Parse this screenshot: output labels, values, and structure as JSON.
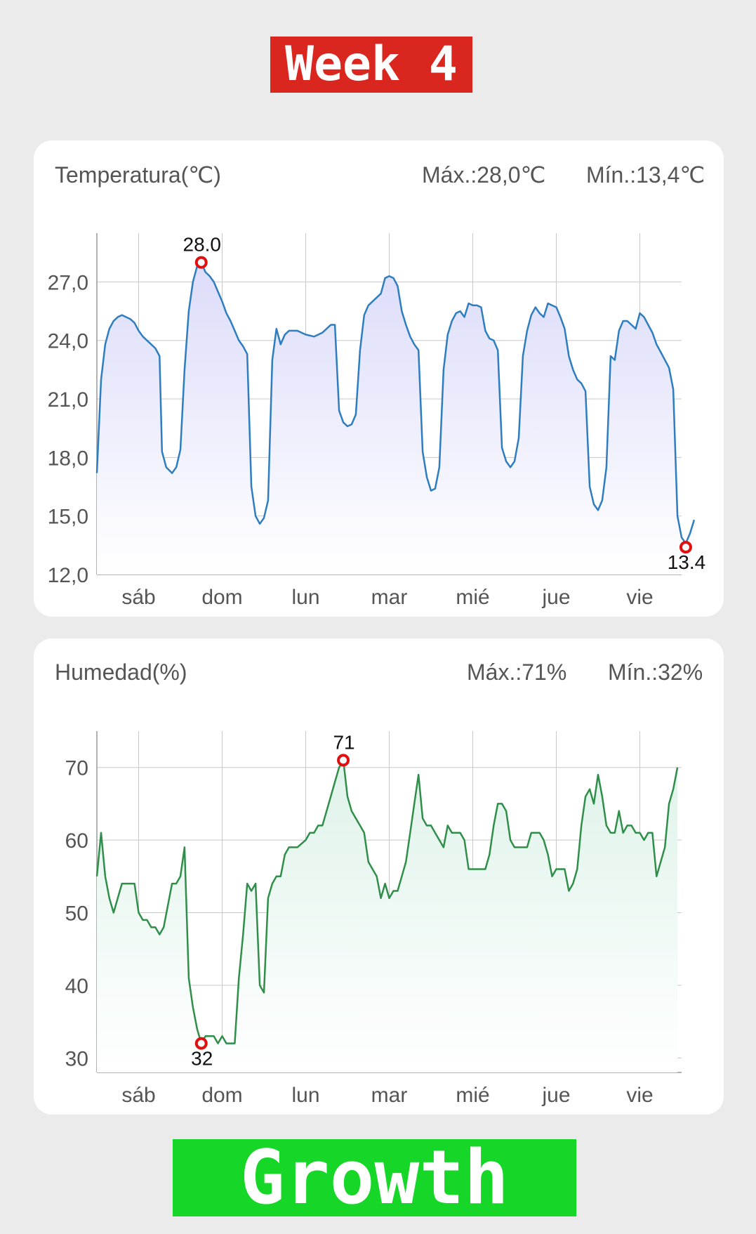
{
  "banner_top": "Week 4",
  "banner_bottom": "Growth",
  "colors": {
    "background": "#ebebeb",
    "banner_top": "#d9261f",
    "banner_bottom": "#16d628",
    "temperature_line": "#2e7dc0",
    "humidity_line": "#2f8f4a",
    "marker": "#e01010"
  },
  "temperature": {
    "title": "Temperatura(℃)",
    "max_label": "Máx.:28,0℃",
    "min_label": "Mín.:13,4℃"
  },
  "humidity": {
    "title": "Humedad(%)",
    "max_label": "Máx.:71%",
    "min_label": "Mín.:32%"
  },
  "chart_data": [
    {
      "type": "area",
      "days": [
        "sáb",
        "dom",
        "lun",
        "mar",
        "mié",
        "jue",
        "vie"
      ],
      "x_range": [
        -0.5,
        6.5
      ],
      "ylim": [
        12.0,
        29.5
      ],
      "yticks": [
        12.0,
        15.0,
        18.0,
        21.0,
        24.0,
        27.0
      ],
      "ytick_labels": [
        "12,0",
        "15,0",
        "18,0",
        "21,0",
        "24,0",
        "27,0"
      ],
      "grid": true,
      "points": [
        [
          -0.5,
          17.2
        ],
        [
          -0.45,
          22.0
        ],
        [
          -0.4,
          23.8
        ],
        [
          -0.35,
          24.6
        ],
        [
          -0.3,
          25.0
        ],
        [
          -0.25,
          25.2
        ],
        [
          -0.2,
          25.3
        ],
        [
          -0.1,
          25.1
        ],
        [
          -0.05,
          24.9
        ],
        [
          0.0,
          24.5
        ],
        [
          0.05,
          24.2
        ],
        [
          0.1,
          24.0
        ],
        [
          0.15,
          23.8
        ],
        [
          0.2,
          23.6
        ],
        [
          0.25,
          23.2
        ],
        [
          0.28,
          18.3
        ],
        [
          0.33,
          17.5
        ],
        [
          0.4,
          17.2
        ],
        [
          0.45,
          17.5
        ],
        [
          0.5,
          18.4
        ],
        [
          0.55,
          22.5
        ],
        [
          0.6,
          25.5
        ],
        [
          0.65,
          27.0
        ],
        [
          0.7,
          27.8
        ],
        [
          0.75,
          28.0
        ],
        [
          0.8,
          27.5
        ],
        [
          0.85,
          27.3
        ],
        [
          0.9,
          27.0
        ],
        [
          0.95,
          26.5
        ],
        [
          1.0,
          26.0
        ],
        [
          1.05,
          25.4
        ],
        [
          1.1,
          25.0
        ],
        [
          1.15,
          24.5
        ],
        [
          1.2,
          24.0
        ],
        [
          1.25,
          23.7
        ],
        [
          1.3,
          23.3
        ],
        [
          1.35,
          16.5
        ],
        [
          1.4,
          15.0
        ],
        [
          1.45,
          14.6
        ],
        [
          1.5,
          14.9
        ],
        [
          1.55,
          15.8
        ],
        [
          1.6,
          23.0
        ],
        [
          1.65,
          24.6
        ],
        [
          1.7,
          23.8
        ],
        [
          1.75,
          24.3
        ],
        [
          1.8,
          24.5
        ],
        [
          1.9,
          24.5
        ],
        [
          2.0,
          24.3
        ],
        [
          2.1,
          24.2
        ],
        [
          2.2,
          24.4
        ],
        [
          2.25,
          24.6
        ],
        [
          2.3,
          24.8
        ],
        [
          2.35,
          24.8
        ],
        [
          2.4,
          20.4
        ],
        [
          2.45,
          19.8
        ],
        [
          2.5,
          19.6
        ],
        [
          2.55,
          19.7
        ],
        [
          2.6,
          20.2
        ],
        [
          2.65,
          23.5
        ],
        [
          2.7,
          25.3
        ],
        [
          2.75,
          25.8
        ],
        [
          2.8,
          26.0
        ],
        [
          2.85,
          26.2
        ],
        [
          2.9,
          26.4
        ],
        [
          2.95,
          27.2
        ],
        [
          3.0,
          27.3
        ],
        [
          3.05,
          27.2
        ],
        [
          3.1,
          26.8
        ],
        [
          3.15,
          25.5
        ],
        [
          3.2,
          24.8
        ],
        [
          3.25,
          24.2
        ],
        [
          3.3,
          23.8
        ],
        [
          3.35,
          23.5
        ],
        [
          3.4,
          18.3
        ],
        [
          3.45,
          17.0
        ],
        [
          3.5,
          16.3
        ],
        [
          3.55,
          16.4
        ],
        [
          3.6,
          17.5
        ],
        [
          3.65,
          22.5
        ],
        [
          3.7,
          24.3
        ],
        [
          3.75,
          25.0
        ],
        [
          3.8,
          25.4
        ],
        [
          3.85,
          25.5
        ],
        [
          3.9,
          25.2
        ],
        [
          3.95,
          25.9
        ],
        [
          4.0,
          25.8
        ],
        [
          4.05,
          25.8
        ],
        [
          4.1,
          25.7
        ],
        [
          4.15,
          24.5
        ],
        [
          4.2,
          24.1
        ],
        [
          4.25,
          24.0
        ],
        [
          4.3,
          23.5
        ],
        [
          4.35,
          18.5
        ],
        [
          4.4,
          17.8
        ],
        [
          4.45,
          17.5
        ],
        [
          4.5,
          17.8
        ],
        [
          4.55,
          19.0
        ],
        [
          4.6,
          23.2
        ],
        [
          4.65,
          24.5
        ],
        [
          4.7,
          25.3
        ],
        [
          4.75,
          25.7
        ],
        [
          4.8,
          25.4
        ],
        [
          4.85,
          25.2
        ],
        [
          4.9,
          25.9
        ],
        [
          4.95,
          25.8
        ],
        [
          5.0,
          25.7
        ],
        [
          5.05,
          25.2
        ],
        [
          5.1,
          24.6
        ],
        [
          5.15,
          23.2
        ],
        [
          5.2,
          22.5
        ],
        [
          5.25,
          22.0
        ],
        [
          5.3,
          21.8
        ],
        [
          5.35,
          21.4
        ],
        [
          5.4,
          16.5
        ],
        [
          5.45,
          15.6
        ],
        [
          5.5,
          15.3
        ],
        [
          5.55,
          15.8
        ],
        [
          5.6,
          17.5
        ],
        [
          5.65,
          23.2
        ],
        [
          5.7,
          23.0
        ],
        [
          5.75,
          24.5
        ],
        [
          5.8,
          25.0
        ],
        [
          5.85,
          25.0
        ],
        [
          5.9,
          24.8
        ],
        [
          5.95,
          24.6
        ],
        [
          6.0,
          25.4
        ],
        [
          6.05,
          25.2
        ],
        [
          6.1,
          24.8
        ],
        [
          6.15,
          24.4
        ],
        [
          6.2,
          23.8
        ],
        [
          6.25,
          23.4
        ],
        [
          6.3,
          23.0
        ],
        [
          6.35,
          22.6
        ],
        [
          6.4,
          21.5
        ],
        [
          6.45,
          15.0
        ],
        [
          6.5,
          13.9
        ],
        [
          6.55,
          13.6
        ],
        [
          6.6,
          14.1
        ],
        [
          6.65,
          14.8
        ]
      ],
      "max": {
        "x": 0.75,
        "y": 28.0,
        "label": "28.0"
      },
      "min": {
        "x": 6.55,
        "y": 13.4,
        "label": "13.4"
      }
    },
    {
      "type": "area",
      "days": [
        "sáb",
        "dom",
        "lun",
        "mar",
        "mié",
        "jue",
        "vie"
      ],
      "x_range": [
        -0.5,
        6.5
      ],
      "ylim": [
        28,
        75
      ],
      "yticks": [
        30,
        40,
        50,
        60,
        70
      ],
      "ytick_labels": [
        "30",
        "40",
        "50",
        "60",
        "70"
      ],
      "grid": true,
      "points": [
        [
          -0.5,
          55
        ],
        [
          -0.45,
          61
        ],
        [
          -0.4,
          55
        ],
        [
          -0.35,
          52
        ],
        [
          -0.3,
          50
        ],
        [
          -0.2,
          54
        ],
        [
          -0.1,
          54
        ],
        [
          -0.05,
          54
        ],
        [
          0.0,
          50
        ],
        [
          0.05,
          49
        ],
        [
          0.1,
          49
        ],
        [
          0.15,
          48
        ],
        [
          0.2,
          48
        ],
        [
          0.25,
          47
        ],
        [
          0.3,
          48
        ],
        [
          0.4,
          54
        ],
        [
          0.45,
          54
        ],
        [
          0.5,
          55
        ],
        [
          0.55,
          59
        ],
        [
          0.6,
          41
        ],
        [
          0.65,
          37
        ],
        [
          0.7,
          34
        ],
        [
          0.75,
          32
        ],
        [
          0.8,
          33
        ],
        [
          0.9,
          33
        ],
        [
          0.95,
          32
        ],
        [
          1.0,
          33
        ],
        [
          1.05,
          32
        ],
        [
          1.1,
          32
        ],
        [
          1.15,
          32
        ],
        [
          1.2,
          41
        ],
        [
          1.25,
          47
        ],
        [
          1.3,
          54
        ],
        [
          1.35,
          53
        ],
        [
          1.4,
          54
        ],
        [
          1.45,
          40
        ],
        [
          1.5,
          39
        ],
        [
          1.55,
          52
        ],
        [
          1.6,
          54
        ],
        [
          1.65,
          55
        ],
        [
          1.7,
          55
        ],
        [
          1.75,
          58
        ],
        [
          1.8,
          59
        ],
        [
          1.9,
          59
        ],
        [
          2.0,
          60
        ],
        [
          2.05,
          61
        ],
        [
          2.1,
          61
        ],
        [
          2.15,
          62
        ],
        [
          2.2,
          62
        ],
        [
          2.25,
          64
        ],
        [
          2.3,
          66
        ],
        [
          2.35,
          68
        ],
        [
          2.4,
          70
        ],
        [
          2.45,
          71
        ],
        [
          2.5,
          66
        ],
        [
          2.55,
          64
        ],
        [
          2.6,
          63
        ],
        [
          2.65,
          62
        ],
        [
          2.7,
          61
        ],
        [
          2.75,
          57
        ],
        [
          2.8,
          56
        ],
        [
          2.85,
          55
        ],
        [
          2.9,
          52
        ],
        [
          2.95,
          54
        ],
        [
          3.0,
          52
        ],
        [
          3.05,
          53
        ],
        [
          3.1,
          53
        ],
        [
          3.15,
          55
        ],
        [
          3.2,
          57
        ],
        [
          3.25,
          61
        ],
        [
          3.3,
          65
        ],
        [
          3.35,
          69
        ],
        [
          3.4,
          63
        ],
        [
          3.45,
          62
        ],
        [
          3.5,
          62
        ],
        [
          3.55,
          61
        ],
        [
          3.6,
          60
        ],
        [
          3.65,
          59
        ],
        [
          3.7,
          62
        ],
        [
          3.75,
          61
        ],
        [
          3.85,
          61
        ],
        [
          3.9,
          60
        ],
        [
          3.95,
          56
        ],
        [
          4.05,
          56
        ],
        [
          4.15,
          56
        ],
        [
          4.2,
          58
        ],
        [
          4.25,
          62
        ],
        [
          4.3,
          65
        ],
        [
          4.35,
          65
        ],
        [
          4.4,
          64
        ],
        [
          4.45,
          60
        ],
        [
          4.5,
          59
        ],
        [
          4.6,
          59
        ],
        [
          4.65,
          59
        ],
        [
          4.7,
          61
        ],
        [
          4.8,
          61
        ],
        [
          4.85,
          60
        ],
        [
          4.9,
          58
        ],
        [
          4.95,
          55
        ],
        [
          5.0,
          56
        ],
        [
          5.1,
          56
        ],
        [
          5.15,
          53
        ],
        [
          5.2,
          54
        ],
        [
          5.25,
          56
        ],
        [
          5.3,
          62
        ],
        [
          5.35,
          66
        ],
        [
          5.4,
          67
        ],
        [
          5.45,
          65
        ],
        [
          5.5,
          69
        ],
        [
          5.55,
          66
        ],
        [
          5.6,
          62
        ],
        [
          5.65,
          61
        ],
        [
          5.7,
          61
        ],
        [
          5.75,
          64
        ],
        [
          5.8,
          61
        ],
        [
          5.85,
          62
        ],
        [
          5.9,
          62
        ],
        [
          5.95,
          61
        ],
        [
          6.0,
          61
        ],
        [
          6.05,
          60
        ],
        [
          6.1,
          61
        ],
        [
          6.15,
          61
        ],
        [
          6.2,
          55
        ],
        [
          6.3,
          59
        ],
        [
          6.35,
          65
        ],
        [
          6.4,
          67
        ],
        [
          6.45,
          70
        ]
      ],
      "max": {
        "x": 2.45,
        "y": 71,
        "label": "71"
      },
      "min": {
        "x": 0.75,
        "y": 32,
        "label": "32"
      }
    }
  ]
}
